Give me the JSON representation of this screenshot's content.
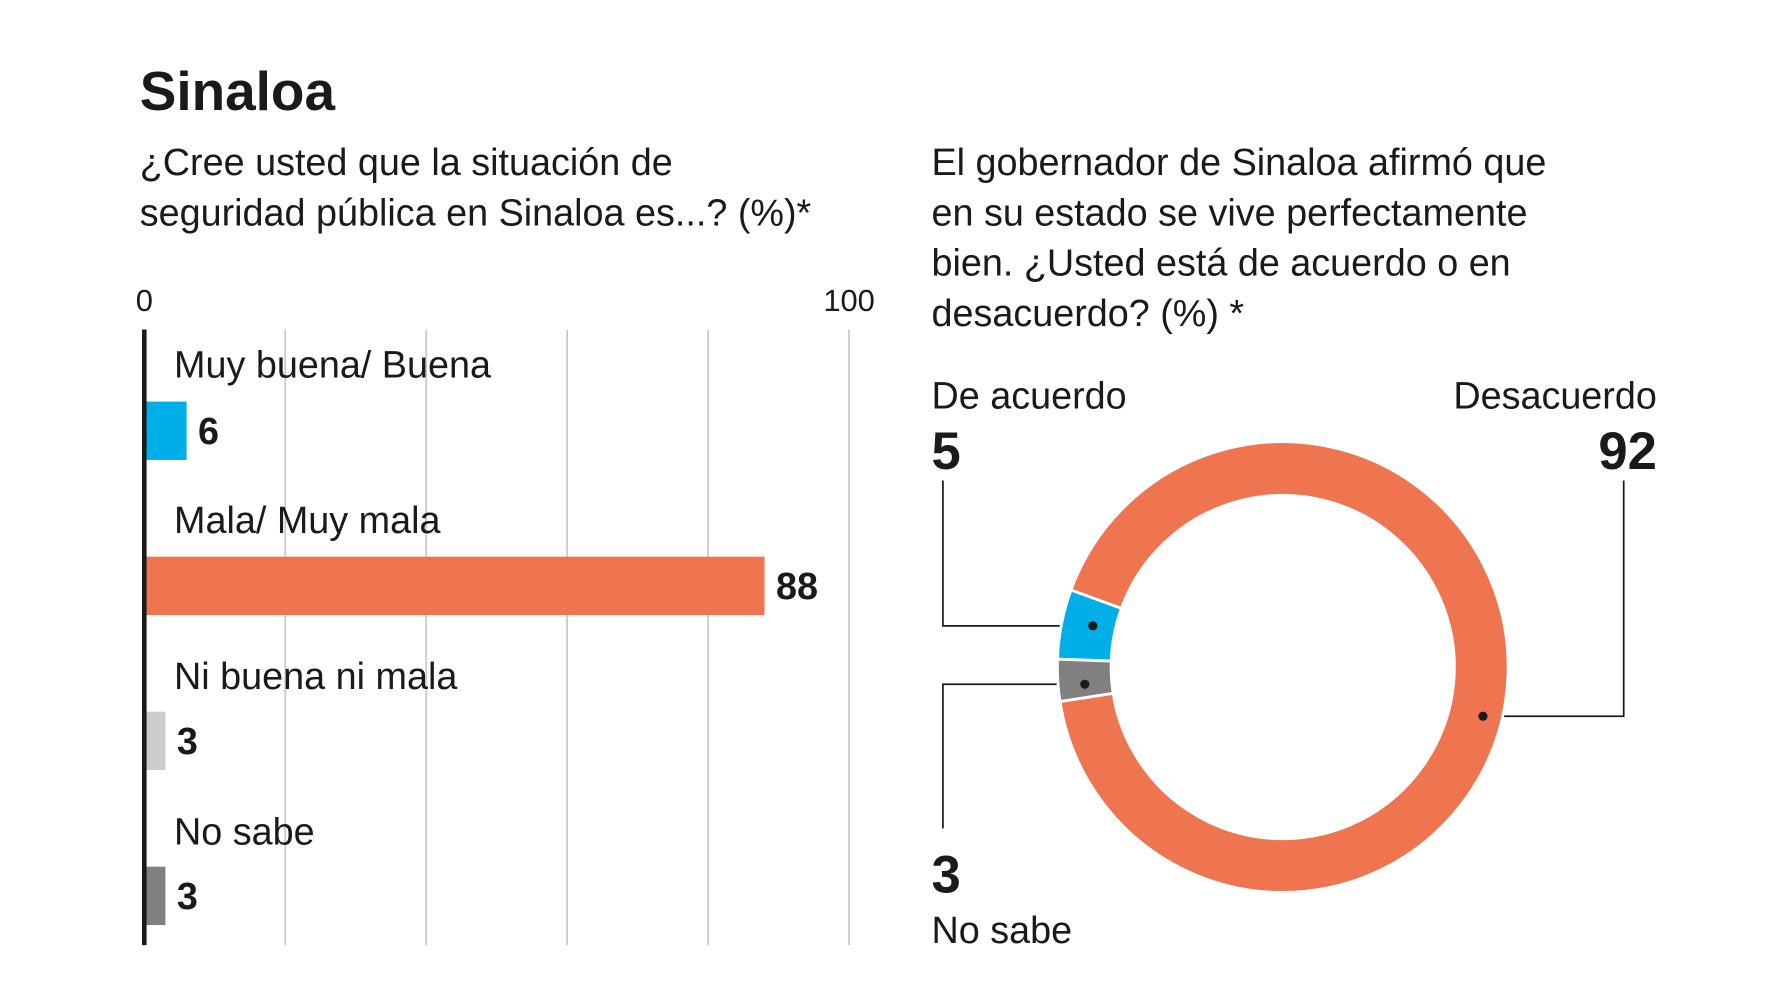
{
  "title": "Sinaloa",
  "chart_data": [
    {
      "type": "hbar",
      "title": [
        "¿Cree usted que la situación de",
        "seguridad pública en Sinaloa es...? (%)*"
      ],
      "categories": [
        "Muy buena/ Buena",
        "Mala/ Muy mala",
        "Ni buena ni mala",
        "No sabe"
      ],
      "values": [
        6,
        88,
        3,
        3
      ],
      "colors": [
        "#00aee8",
        "#ee754f",
        "#cccccc",
        "#808080"
      ],
      "xlim": [
        0,
        100
      ],
      "xticks": [
        0,
        100
      ],
      "gridlines": [
        20,
        40,
        60,
        80,
        100
      ]
    },
    {
      "type": "donut",
      "title": [
        "El gobernador de Sinaloa afirmó que",
        "en su estado se vive perfectamente",
        "bien. ¿Usted está de acuerdo o en",
        "desacuerdo? (%) *"
      ],
      "categories": [
        "De acuerdo",
        "Desacuerdo",
        "No sabe"
      ],
      "values": [
        5,
        92,
        3
      ],
      "colors": [
        "#00aee8",
        "#ee754f",
        "#808080"
      ]
    }
  ]
}
